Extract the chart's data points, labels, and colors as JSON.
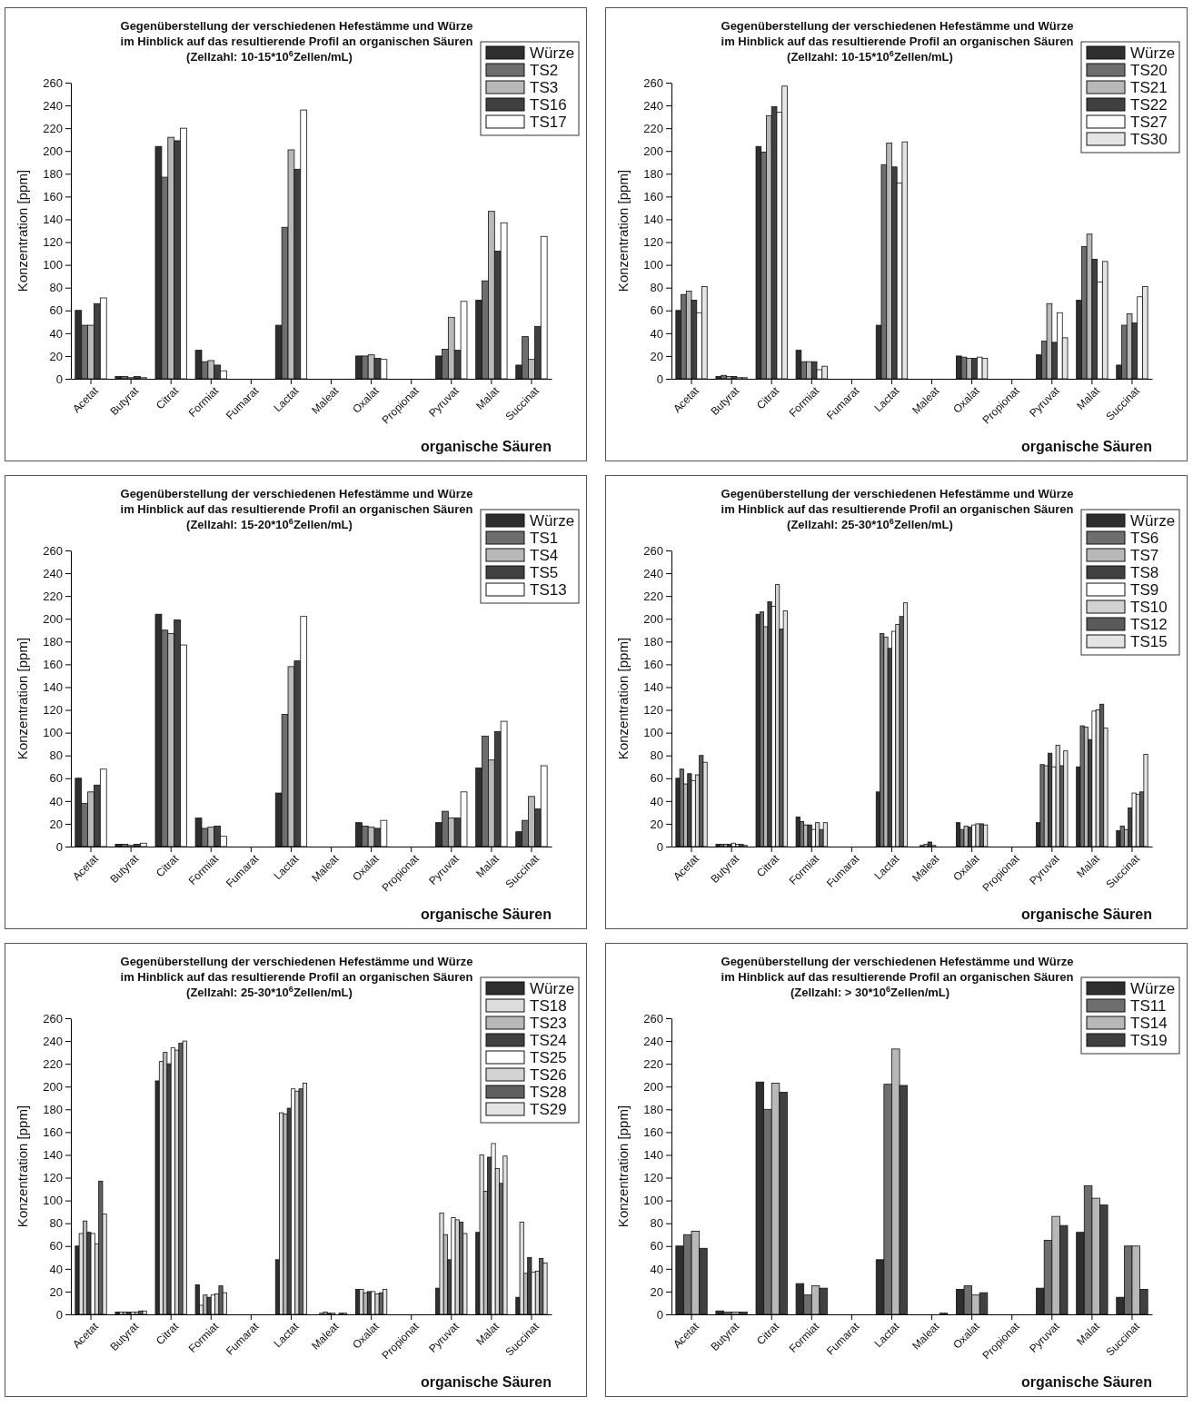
{
  "chart_data": [
    {
      "type": "bar",
      "title": "Gegenüberstellung der verschiedenen Hefestämme und Würze\nim Hinblick auf das resultierende Profil an organischen Säuren",
      "subtitle": "(Zellzahl: 10-15*10$^{6}$Zellen/mL)",
      "xlabel": "organische Säuren",
      "ylabel": "Konzentration [ppm]",
      "ylim": [
        0,
        260
      ],
      "yticks": [
        0,
        20,
        40,
        60,
        80,
        100,
        120,
        140,
        160,
        180,
        200,
        220,
        240,
        260
      ],
      "legend": "top right",
      "categories": [
        "Acetat",
        "Butyrat",
        "Citrat",
        "Formiat",
        "Fumarat",
        "Lactat",
        "Maleat",
        "Oxalat",
        "Propionat",
        "Pyruvat",
        "Malat",
        "Succinat"
      ],
      "series": [
        {
          "name": "Würze",
          "color": "#2e2e2e",
          "values": [
            60,
            2,
            204,
            25,
            0,
            47,
            0,
            20,
            0,
            20,
            69,
            12
          ]
        },
        {
          "name": "TS2",
          "color": "#6e6e6e",
          "values": [
            47,
            2,
            177,
            15,
            0,
            133,
            0,
            20,
            0,
            26,
            86,
            37
          ]
        },
        {
          "name": "TS3",
          "color": "#b8b8b8",
          "values": [
            47,
            1,
            212,
            16,
            0,
            201,
            0,
            21,
            0,
            54,
            147,
            17
          ]
        },
        {
          "name": "TS16",
          "color": "#404040",
          "values": [
            66,
            2,
            209,
            12,
            0,
            184,
            0,
            18,
            0,
            25,
            112,
            46
          ]
        },
        {
          "name": "TS17",
          "color": "#ffffff",
          "values": [
            71,
            1,
            220,
            7,
            0,
            236,
            0,
            17,
            0,
            68,
            137,
            125
          ]
        }
      ]
    },
    {
      "type": "bar",
      "title": "Gegenüberstellung der verschiedenen Hefestämme und Würze\nim Hinblick auf das resultierende Profil an organischen Säuren",
      "subtitle": "(Zellzahl: 10-15*10$^{6}$Zellen/mL)",
      "xlabel": "organische Säuren",
      "ylabel": "Konzentration [ppm]",
      "ylim": [
        0,
        260
      ],
      "yticks": [
        0,
        20,
        40,
        60,
        80,
        100,
        120,
        140,
        160,
        180,
        200,
        220,
        240,
        260
      ],
      "legend": "top right",
      "categories": [
        "Acetat",
        "Butyrat",
        "Citrat",
        "Formiat",
        "Fumarat",
        "Lactat",
        "Maleat",
        "Oxalat",
        "Propionat",
        "Pyruvat",
        "Malat",
        "Succinat"
      ],
      "series": [
        {
          "name": "Würze",
          "color": "#2e2e2e",
          "values": [
            60,
            2,
            204,
            25,
            0,
            47,
            0,
            20,
            0,
            21,
            69,
            12
          ]
        },
        {
          "name": "TS20",
          "color": "#6e6e6e",
          "values": [
            74,
            3,
            199,
            15,
            0,
            188,
            0,
            19,
            0,
            33,
            116,
            47
          ]
        },
        {
          "name": "TS21",
          "color": "#b8b8b8",
          "values": [
            77,
            2,
            231,
            15,
            0,
            207,
            0,
            18,
            0,
            66,
            127,
            57
          ]
        },
        {
          "name": "TS22",
          "color": "#404040",
          "values": [
            69,
            2,
            239,
            15,
            0,
            186,
            0,
            18,
            0,
            32,
            105,
            49
          ]
        },
        {
          "name": "TS27",
          "color": "#ffffff",
          "values": [
            58,
            1,
            234,
            8,
            0,
            172,
            0,
            19,
            0,
            58,
            85,
            72
          ]
        },
        {
          "name": "TS30",
          "color": "#e4e4e4",
          "values": [
            81,
            1,
            257,
            11,
            0,
            208,
            0,
            18,
            0,
            36,
            103,
            81
          ]
        }
      ]
    },
    {
      "type": "bar",
      "title": "Gegenüberstellung der verschiedenen Hefestämme und Würze\nim Hinblick auf das resultierende Profil an organischen Säuren",
      "subtitle": "(Zellzahl: 15-20*10$^{6}$Zellen/mL)",
      "xlabel": "organische Säuren",
      "ylabel": "Konzentration [ppm]",
      "ylim": [
        0,
        260
      ],
      "yticks": [
        0,
        20,
        40,
        60,
        80,
        100,
        120,
        140,
        160,
        180,
        200,
        220,
        240,
        260
      ],
      "legend": "top right",
      "categories": [
        "Acetat",
        "Butyrat",
        "Citrat",
        "Formiat",
        "Fumarat",
        "Lactat",
        "Maleat",
        "Oxalat",
        "Propionat",
        "Pyruvat",
        "Malat",
        "Succinat"
      ],
      "series": [
        {
          "name": "Würze",
          "color": "#2e2e2e",
          "values": [
            60,
            2,
            204,
            25,
            0,
            47,
            0,
            21,
            0,
            21,
            69,
            13
          ]
        },
        {
          "name": "TS1",
          "color": "#6e6e6e",
          "values": [
            38,
            2,
            190,
            16,
            0,
            116,
            0,
            18,
            0,
            31,
            97,
            23
          ]
        },
        {
          "name": "TS4",
          "color": "#b8b8b8",
          "values": [
            48,
            1,
            187,
            17,
            0,
            158,
            0,
            17,
            0,
            25,
            76,
            44
          ]
        },
        {
          "name": "TS5",
          "color": "#404040",
          "values": [
            54,
            2,
            199,
            18,
            0,
            163,
            0,
            16,
            0,
            25,
            101,
            33
          ]
        },
        {
          "name": "TS13",
          "color": "#ffffff",
          "values": [
            68,
            3,
            177,
            9,
            0,
            202,
            0,
            23,
            0,
            48,
            110,
            71
          ]
        }
      ]
    },
    {
      "type": "bar",
      "title": "Gegenüberstellung der verschiedenen Hefestämme und Würze\nim Hinblick auf das resultierende Profil an organischen Säuren",
      "subtitle": "(Zellzahl: 25-30*10$^{6}$Zellen/mL)",
      "xlabel": "organische Säuren",
      "ylabel": "Konzentration [ppm]",
      "ylim": [
        0,
        260
      ],
      "yticks": [
        0,
        20,
        40,
        60,
        80,
        100,
        120,
        140,
        160,
        180,
        200,
        220,
        240,
        260
      ],
      "legend": "top right",
      "categories": [
        "Acetat",
        "Butyrat",
        "Citrat",
        "Formiat",
        "Fumarat",
        "Lactat",
        "Maleat",
        "Oxalat",
        "Propionat",
        "Pyruvat",
        "Malat",
        "Succinat"
      ],
      "series": [
        {
          "name": "Würze",
          "color": "#2e2e2e",
          "values": [
            60,
            2,
            204,
            26,
            0,
            48,
            0,
            21,
            0,
            21,
            70,
            14
          ]
        },
        {
          "name": "TS6",
          "color": "#6e6e6e",
          "values": [
            68,
            2,
            206,
            22,
            0,
            187,
            1,
            15,
            0,
            72,
            106,
            18
          ]
        },
        {
          "name": "TS7",
          "color": "#b8b8b8",
          "values": [
            55,
            2,
            193,
            19,
            0,
            184,
            2,
            18,
            0,
            71,
            105,
            15
          ]
        },
        {
          "name": "TS8",
          "color": "#404040",
          "values": [
            64,
            2,
            215,
            19,
            0,
            174,
            4,
            17,
            0,
            82,
            94,
            34
          ]
        },
        {
          "name": "TS9",
          "color": "#ffffff",
          "values": [
            58,
            3,
            211,
            15,
            0,
            189,
            1,
            19,
            0,
            70,
            119,
            47
          ]
        },
        {
          "name": "TS10",
          "color": "#d2d2d2",
          "values": [
            63,
            2,
            230,
            21,
            0,
            195,
            0,
            20,
            0,
            89,
            120,
            46
          ]
        },
        {
          "name": "TS12",
          "color": "#5a5a5a",
          "values": [
            80,
            2,
            191,
            15,
            0,
            202,
            0,
            20,
            0,
            71,
            125,
            48
          ]
        },
        {
          "name": "TS15",
          "color": "#e4e4e4",
          "values": [
            74,
            1,
            207,
            21,
            0,
            214,
            0,
            19,
            0,
            84,
            104,
            81
          ]
        }
      ]
    },
    {
      "type": "bar",
      "title": "Gegenüberstellung der verschiedenen Hefestämme und Würze\nim Hinblick auf das resultierende Profil an organischen Säuren",
      "subtitle": "(Zellzahl: 25-30*10$^{6}$Zellen/mL)",
      "xlabel": "organische Säuren",
      "ylabel": "Konzentration [ppm]",
      "ylim": [
        0,
        260
      ],
      "yticks": [
        0,
        20,
        40,
        60,
        80,
        100,
        120,
        140,
        160,
        180,
        200,
        220,
        240,
        260
      ],
      "legend": "top right",
      "categories": [
        "Acetat",
        "Butyrat",
        "Citrat",
        "Formiat",
        "Fumarat",
        "Lactat",
        "Maleat",
        "Oxalat",
        "Propionat",
        "Pyruvat",
        "Malat",
        "Succinat"
      ],
      "series": [
        {
          "name": "Würze",
          "color": "#2e2e2e",
          "values": [
            60,
            2,
            205,
            26,
            0,
            48,
            0,
            22,
            0,
            23,
            72,
            15
          ]
        },
        {
          "name": "TS18",
          "color": "#dcdcdc",
          "values": [
            71,
            2,
            222,
            8,
            0,
            177,
            1,
            22,
            0,
            89,
            140,
            81
          ]
        },
        {
          "name": "TS23",
          "color": "#b8b8b8",
          "values": [
            82,
            2,
            230,
            17,
            0,
            176,
            2,
            19,
            0,
            70,
            108,
            36
          ]
        },
        {
          "name": "TS24",
          "color": "#404040",
          "values": [
            72,
            2,
            220,
            15,
            0,
            181,
            1,
            20,
            0,
            48,
            138,
            50
          ]
        },
        {
          "name": "TS25",
          "color": "#ffffff",
          "values": [
            71,
            2,
            234,
            17,
            0,
            198,
            1,
            20,
            0,
            85,
            150,
            37
          ]
        },
        {
          "name": "TS26",
          "color": "#d2d2d2",
          "values": [
            62,
            2,
            232,
            18,
            0,
            196,
            0,
            18,
            0,
            83,
            128,
            38
          ]
        },
        {
          "name": "TS28",
          "color": "#606060",
          "values": [
            117,
            3,
            238,
            25,
            0,
            198,
            1,
            19,
            0,
            81,
            115,
            49
          ]
        },
        {
          "name": "TS29",
          "color": "#e4e4e4",
          "values": [
            88,
            3,
            240,
            19,
            0,
            203,
            1,
            22,
            0,
            71,
            139,
            45
          ]
        }
      ]
    },
    {
      "type": "bar",
      "title": "Gegenüberstellung der verschiedenen Hefestämme und Würze\nim Hinblick auf das resultierende Profil an organischen Säuren",
      "subtitle": "(Zellzahl: > 30*10$^{6}$Zellen/mL)",
      "xlabel": "organische Säuren",
      "ylabel": "Konzentration [ppm]",
      "ylim": [
        0,
        260
      ],
      "yticks": [
        0,
        20,
        40,
        60,
        80,
        100,
        120,
        140,
        160,
        180,
        200,
        220,
        240,
        260
      ],
      "legend": "top right",
      "categories": [
        "Acetat",
        "Butyrat",
        "Citrat",
        "Formiat",
        "Fumarat",
        "Lactat",
        "Maleat",
        "Oxalat",
        "Propionat",
        "Pyruvat",
        "Malat",
        "Succinat"
      ],
      "series": [
        {
          "name": "Würze",
          "color": "#2e2e2e",
          "values": [
            60,
            3,
            204,
            27,
            0,
            48,
            0,
            22,
            0,
            23,
            72,
            15
          ]
        },
        {
          "name": "TS11",
          "color": "#6e6e6e",
          "values": [
            70,
            2,
            180,
            17,
            0,
            202,
            0,
            25,
            0,
            65,
            113,
            60
          ]
        },
        {
          "name": "TS14",
          "color": "#b8b8b8",
          "values": [
            73,
            2,
            203,
            25,
            0,
            233,
            0,
            17,
            0,
            86,
            102,
            60
          ]
        },
        {
          "name": "TS19",
          "color": "#404040",
          "values": [
            58,
            2,
            195,
            23,
            0,
            201,
            1,
            19,
            0,
            78,
            96,
            22
          ]
        }
      ]
    }
  ]
}
